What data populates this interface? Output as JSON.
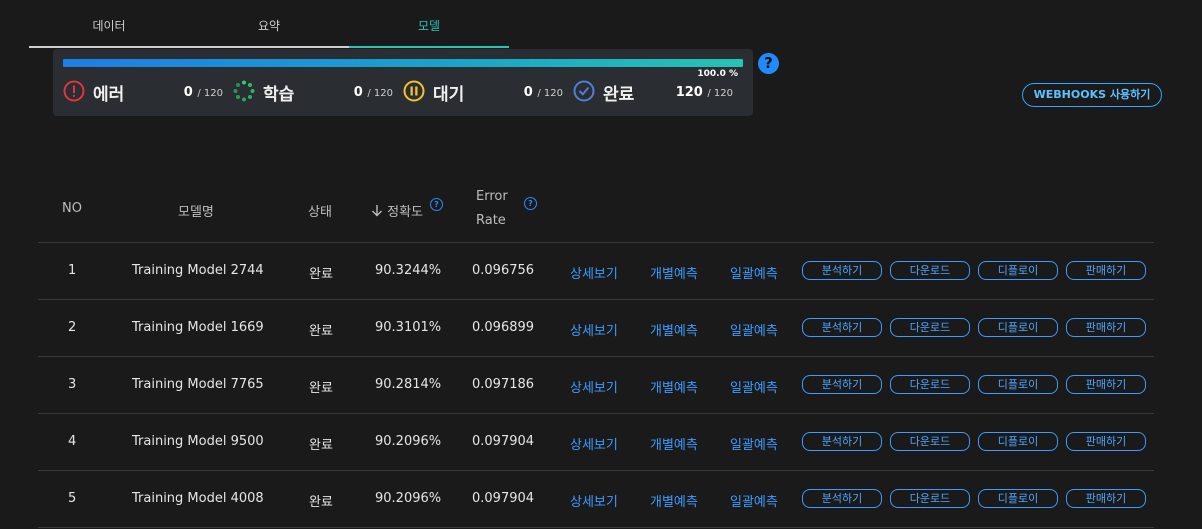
{
  "tabs": [
    {
      "label": "데이터",
      "active": false
    },
    {
      "label": "요약",
      "active": false
    },
    {
      "label": "모델",
      "active": true
    }
  ],
  "status": {
    "progress_percent": 100.0,
    "progress_text": "100.0 %",
    "items": [
      {
        "label": "에러",
        "count": "0",
        "total": "/ 120",
        "icon": "error-icon"
      },
      {
        "label": "학습",
        "count": "0",
        "total": "/ 120",
        "icon": "spinner-icon"
      },
      {
        "label": "대기",
        "count": "0",
        "total": "/ 120",
        "icon": "pause-icon"
      },
      {
        "label": "완료",
        "count": "120",
        "total": "/ 120",
        "icon": "check-icon"
      }
    ]
  },
  "help_symbol": "?",
  "webhooks_label": "WEBHOOKS 사용하기",
  "table": {
    "headers": {
      "no": "NO",
      "name": "모델명",
      "state": "상태",
      "accuracy": "정확도",
      "error_rate_1": "Error",
      "error_rate_2": "Rate"
    },
    "sort_icon": "arrow-down-icon",
    "rows": [
      {
        "no": "1",
        "name": "Training Model 2744",
        "state": "완료",
        "accuracy": "90.3244%",
        "error_rate": "0.096756"
      },
      {
        "no": "2",
        "name": "Training Model 1669",
        "state": "완료",
        "accuracy": "90.3101%",
        "error_rate": "0.096899"
      },
      {
        "no": "3",
        "name": "Training Model 7765",
        "state": "완료",
        "accuracy": "90.2814%",
        "error_rate": "0.097186"
      },
      {
        "no": "4",
        "name": "Training Model 9500",
        "state": "완료",
        "accuracy": "90.2096%",
        "error_rate": "0.097904"
      },
      {
        "no": "5",
        "name": "Training Model 4008",
        "state": "완료",
        "accuracy": "90.2096%",
        "error_rate": "0.097904"
      }
    ],
    "row_links": [
      "상세보기",
      "개별예측",
      "일괄예측"
    ],
    "row_buttons": [
      "분석하기",
      "다운로드",
      "디플로이",
      "판매하기"
    ]
  },
  "colors": {
    "accent_teal": "#26c4b4",
    "link_blue": "#3d9bff",
    "error_red": "#e0353b",
    "spinner_green": "#2ecc71",
    "pause_yellow": "#f2c230",
    "check_blue": "#4f7fd6"
  }
}
